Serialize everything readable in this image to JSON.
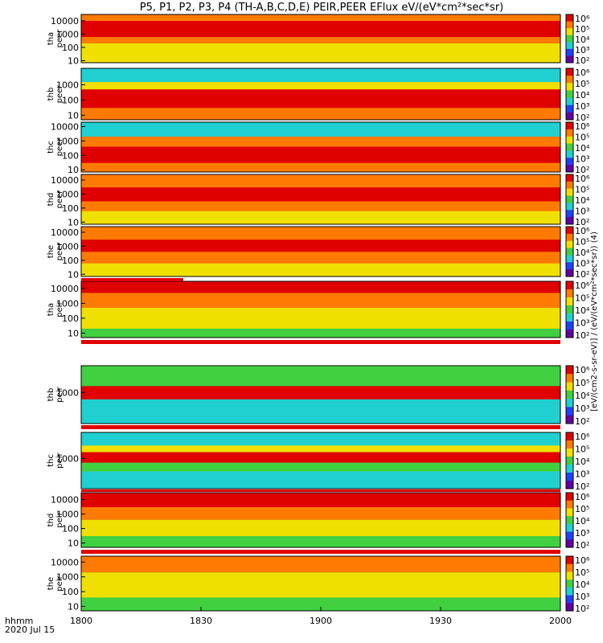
{
  "title": "P5, P1, P2, P3, P4 (TH-A,B,C,D,E) PEIR,PEER EFlux eV/(eV*cm²*sec*sr)",
  "time_axis": {
    "row1": "hhmm",
    "row2": "2020 Jul 15",
    "ticks": [
      "1800",
      "1830",
      "1900",
      "1930",
      "2000"
    ],
    "range_minutes": [
      0,
      120
    ]
  },
  "colorbar_label": "[eV/(cm2-s-sr-eV)] / (eV/(eV*cm²*sec*sr)) (4)",
  "colorbar_ticks": [
    "10⁶",
    "10⁵",
    "10⁴",
    "10³",
    "10²"
  ],
  "palette": {
    "red": "#e00000",
    "orange": "#ff7a00",
    "yellow": "#f0e000",
    "green": "#40d040",
    "cyan": "#20d0d0",
    "blue": "#2040ff",
    "black": "#000000"
  },
  "chart_data": [
    {
      "type": "heatmap",
      "name": "tha_peer",
      "ylabel": [
        "tha",
        "peer"
      ],
      "yticks": [
        "10000",
        "1000",
        "100",
        "10"
      ],
      "ylim_ev": [
        7,
        30000
      ],
      "bands": [
        {
          "from": 10,
          "to": 200,
          "color": "#f0e000"
        },
        {
          "from": 200,
          "to": 600,
          "color": "#ff7a00"
        },
        {
          "from": 600,
          "to": 10000,
          "color": "#e00000"
        },
        {
          "from": 10000,
          "to": 30000,
          "color": "#ff7a00"
        }
      ]
    },
    {
      "type": "heatmap",
      "name": "thb_peer",
      "ylabel": [
        "thb",
        "peer"
      ],
      "yticks": [
        "1000",
        "100",
        "10"
      ],
      "ylim_ev": [
        5,
        12000
      ],
      "bands": [
        {
          "from": 5,
          "to": 30,
          "color": "#ff7a00"
        },
        {
          "from": 30,
          "to": 500,
          "color": "#e00000"
        },
        {
          "from": 500,
          "to": 1500,
          "color": "#f0e000"
        },
        {
          "from": 1500,
          "to": 12000,
          "color": "#20d0d0"
        }
      ]
    },
    {
      "type": "heatmap",
      "name": "thc_peer",
      "ylabel": [
        "thc",
        "peer"
      ],
      "yticks": [
        "10000",
        "1000",
        "100",
        "10"
      ],
      "ylim_ev": [
        7,
        20000
      ],
      "bands": [
        {
          "from": 7,
          "to": 30,
          "color": "#ff7a00"
        },
        {
          "from": 30,
          "to": 400,
          "color": "#e00000"
        },
        {
          "from": 400,
          "to": 2000,
          "color": "#ff7a00"
        },
        {
          "from": 2000,
          "to": 20000,
          "color": "#20d0d0"
        }
      ]
    },
    {
      "type": "heatmap",
      "name": "thd_peer",
      "ylabel": [
        "thd",
        "peer"
      ],
      "yticks": [
        "10000",
        "1000",
        "100",
        "10"
      ],
      "ylim_ev": [
        7,
        25000
      ],
      "bands": [
        {
          "from": 7,
          "to": 60,
          "color": "#f0e000"
        },
        {
          "from": 60,
          "to": 300,
          "color": "#ff7a00"
        },
        {
          "from": 300,
          "to": 3000,
          "color": "#e00000"
        },
        {
          "from": 3000,
          "to": 25000,
          "color": "#ff7a00"
        }
      ]
    },
    {
      "type": "heatmap",
      "name": "the_peer",
      "ylabel": [
        "the",
        "peer"
      ],
      "yticks": [
        "10000",
        "1000",
        "100",
        "10"
      ],
      "ylim_ev": [
        7,
        25000
      ],
      "bands": [
        {
          "from": 7,
          "to": 60,
          "color": "#f0e000"
        },
        {
          "from": 60,
          "to": 400,
          "color": "#ff7a00"
        },
        {
          "from": 400,
          "to": 3000,
          "color": "#e00000"
        },
        {
          "from": 3000,
          "to": 25000,
          "color": "#ff7a00"
        }
      ]
    },
    {
      "type": "heatmap",
      "name": "tha_peir",
      "ylabel": [
        "tha",
        "peir"
      ],
      "yticks": [
        "10000",
        "1000",
        "100",
        "10"
      ],
      "ylim_ev": [
        5,
        30000
      ],
      "bands": [
        {
          "from": 5,
          "to": 20,
          "color": "#40d040"
        },
        {
          "from": 20,
          "to": 500,
          "color": "#f0e000"
        },
        {
          "from": 500,
          "to": 5000,
          "color": "#ff7a00"
        },
        {
          "from": 5000,
          "to": 30000,
          "color": "#e00000"
        }
      ]
    },
    {
      "type": "heatmap",
      "name": "thb_peir",
      "ylabel": [
        "thb",
        "peir"
      ],
      "yticks": [
        "1000"
      ],
      "ylim_ev": [
        200,
        4000
      ],
      "bands": [
        {
          "from": 200,
          "to": 700,
          "color": "#20d0d0"
        },
        {
          "from": 700,
          "to": 1400,
          "color": "#e00000"
        },
        {
          "from": 1400,
          "to": 4000,
          "color": "#40d040"
        }
      ]
    },
    {
      "type": "heatmap",
      "name": "thc_peir",
      "ylabel": [
        "thc",
        "peir"
      ],
      "yticks": [
        "1000"
      ],
      "ylim_ev": [
        200,
        4000
      ],
      "bands": [
        {
          "from": 200,
          "to": 500,
          "color": "#20d0d0"
        },
        {
          "from": 500,
          "to": 800,
          "color": "#40d040"
        },
        {
          "from": 800,
          "to": 1400,
          "color": "#e00000"
        },
        {
          "from": 1400,
          "to": 2000,
          "color": "#f0e000"
        },
        {
          "from": 2000,
          "to": 4000,
          "color": "#20d0d0"
        }
      ]
    },
    {
      "type": "heatmap",
      "name": "thd_peir",
      "ylabel": [
        "thd",
        "peir"
      ],
      "yticks": [
        "10000",
        "1000",
        "100",
        "10"
      ],
      "ylim_ev": [
        5,
        30000
      ],
      "bands": [
        {
          "from": 5,
          "to": 30,
          "color": "#40d040"
        },
        {
          "from": 30,
          "to": 400,
          "color": "#f0e000"
        },
        {
          "from": 400,
          "to": 3000,
          "color": "#ff7a00"
        },
        {
          "from": 3000,
          "to": 30000,
          "color": "#e00000"
        }
      ]
    },
    {
      "type": "heatmap",
      "name": "the_peir",
      "ylabel": [
        "the",
        "peir"
      ],
      "yticks": [
        "10000",
        "1000",
        "100",
        "10"
      ],
      "ylim_ev": [
        5,
        25000
      ],
      "bands": [
        {
          "from": 5,
          "to": 40,
          "color": "#40d040"
        },
        {
          "from": 40,
          "to": 2000,
          "color": "#f0e000"
        },
        {
          "from": 2000,
          "to": 25000,
          "color": "#ff7a00"
        }
      ]
    }
  ]
}
